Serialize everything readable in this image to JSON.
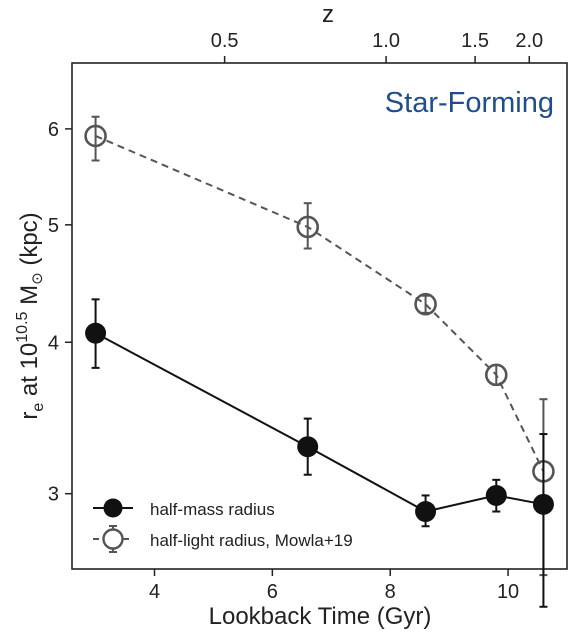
{
  "chart_data": {
    "type": "line",
    "title": "",
    "annotation": "Star-Forming",
    "xlabel": "Lookback Time (Gyr)",
    "ylabel": {
      "prefix": "r",
      "sub": "e",
      "middle": " at 10",
      "sup": "10.5",
      "suffix": " M",
      "symbol": "⊙",
      "tail": " (kpc)"
    },
    "top_axis_label": "z",
    "xlim": [
      2.6,
      11.0
    ],
    "ylim": [
      2.6,
      6.8
    ],
    "y_scale": "log",
    "x_ticks": [
      4,
      6,
      8,
      10
    ],
    "y_ticks": [
      3,
      4,
      5,
      6
    ],
    "top_ticks": [
      {
        "label": "0.5",
        "t": 5.19
      },
      {
        "label": "1.0",
        "t": 7.93
      },
      {
        "label": "1.5",
        "t": 9.44
      },
      {
        "label": "2.0",
        "t": 10.36
      }
    ],
    "legend_position": "lower-left",
    "series": [
      {
        "name": "half-light radius, Mowla+19",
        "color": "#555555",
        "marker": "open-circle",
        "linestyle": "dashed",
        "x": [
          3.0,
          6.6,
          8.6,
          9.8,
          10.6
        ],
        "y": [
          5.92,
          4.98,
          4.3,
          3.76,
          3.13
        ],
        "yerr_low": [
          0.27,
          0.2,
          0.07,
          0.07,
          0.56
        ],
        "yerr_high": [
          0.22,
          0.23,
          0.07,
          0.07,
          0.46
        ]
      },
      {
        "name": "half-mass radius",
        "color": "#111111",
        "marker": "filled-circle",
        "linestyle": "solid",
        "x": [
          3.0,
          6.6,
          8.6,
          9.8,
          10.6
        ],
        "y": [
          4.07,
          3.28,
          2.9,
          2.99,
          2.94
        ],
        "yerr_low": [
          0.26,
          0.17,
          0.08,
          0.09,
          0.52
        ],
        "yerr_high": [
          0.27,
          0.18,
          0.09,
          0.09,
          0.42
        ]
      }
    ]
  }
}
